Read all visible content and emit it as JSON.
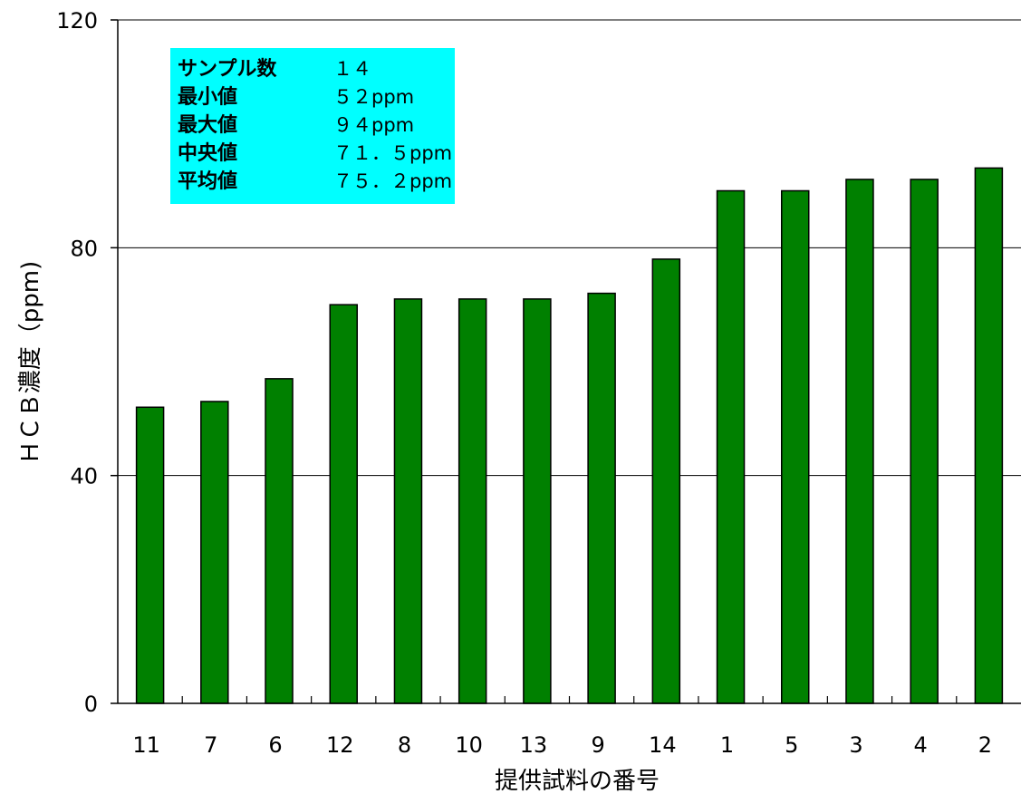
{
  "chart_data": {
    "type": "bar",
    "categories": [
      "11",
      "7",
      "6",
      "12",
      "8",
      "10",
      "13",
      "9",
      "14",
      "1",
      "5",
      "3",
      "4",
      "2"
    ],
    "values": [
      52,
      53,
      57,
      70,
      71,
      71,
      71,
      72,
      78,
      90,
      90,
      92,
      92,
      94
    ],
    "xlabel": "提供試料の番号",
    "ylabel": "ＨＣＢ濃度（ppm)",
    "ylim": [
      0,
      120
    ],
    "yticks": [
      "0",
      "40",
      "80",
      "120"
    ],
    "grid": true,
    "bar_color": "#008000",
    "stats_box": {
      "background": "#00ffff",
      "rows": [
        {
          "label": "サンプル数",
          "value": "１４"
        },
        {
          "label": "最小値",
          "value": "５２ppm"
        },
        {
          "label": "最大値",
          "value": "９４ppm"
        },
        {
          "label": "中央値",
          "value": "７１．５ppm"
        },
        {
          "label": "平均値",
          "value": "７５．２ppm"
        }
      ]
    }
  }
}
